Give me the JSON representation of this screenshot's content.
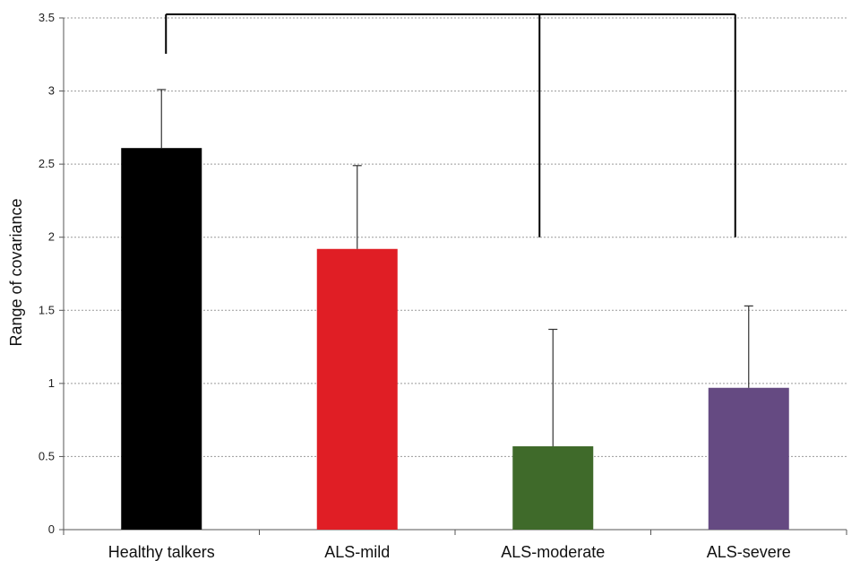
{
  "chart_data": {
    "type": "bar",
    "title": "",
    "xlabel": "",
    "ylabel": "Range of covariance",
    "categories": [
      "Healthy talkers",
      "ALS-mild",
      "ALS-moderate",
      "ALS-severe"
    ],
    "values": [
      2.61,
      1.92,
      0.57,
      0.97
    ],
    "error_upper": [
      0.4,
      0.57,
      0.8,
      0.56
    ],
    "colors": [
      "#000000",
      "#e01e25",
      "#3f6a2a",
      "#654a82"
    ],
    "ylim": [
      0,
      3.5
    ],
    "yticks": [
      0,
      0.5,
      1,
      1.5,
      2,
      2.5,
      3,
      3.5
    ],
    "ytick_labels": [
      "0",
      "0.5",
      "1",
      "1.5",
      "2",
      "2.5",
      "3",
      "3.5"
    ],
    "grid": true,
    "legend": "none",
    "significance_brackets": [
      {
        "from": "Healthy talkers",
        "to": [
          "ALS-moderate",
          "ALS-severe"
        ]
      }
    ]
  }
}
